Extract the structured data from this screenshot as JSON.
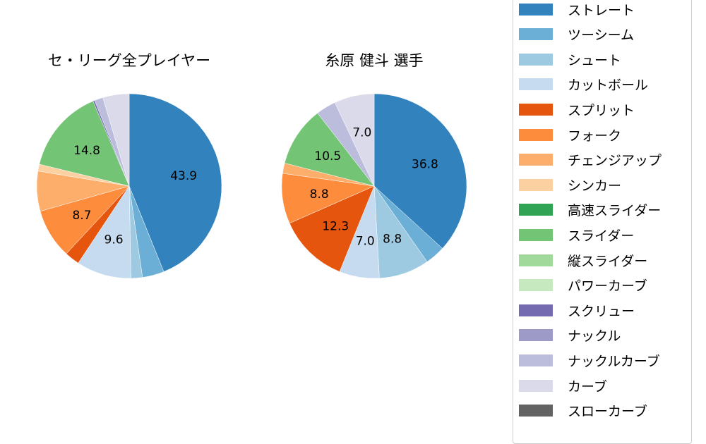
{
  "chart_data": [
    {
      "type": "pie",
      "title": "セ・リーグ全プレイヤー",
      "categories": [
        "ストレート",
        "ツーシーム",
        "シュート",
        "カットボール",
        "スプリット",
        "フォーク",
        "チェンジアップ",
        "シンカー",
        "高速スライダー",
        "スライダー",
        "縦スライダー",
        "パワーカーブ",
        "スクリュー",
        "ナックル",
        "ナックルカーブ",
        "カーブ",
        "スローカーブ"
      ],
      "values": [
        43.9,
        3.8,
        2.0,
        9.6,
        2.6,
        8.7,
        7.0,
        1.2,
        0.0,
        14.8,
        0.0,
        0.0,
        0.3,
        0.0,
        1.5,
        4.6,
        0.0
      ],
      "labels_shown": {
        "ストレート": "43.9",
        "カットボール": "9.6",
        "フォーク": "8.7",
        "スライダー": "14.8"
      },
      "start_angle": 90,
      "direction": "clockwise"
    },
    {
      "type": "pie",
      "title": "糸原 健斗  選手",
      "categories": [
        "ストレート",
        "ツーシーム",
        "シュート",
        "カットボール",
        "スプリット",
        "フォーク",
        "チェンジアップ",
        "シンカー",
        "高速スライダー",
        "スライダー",
        "縦スライダー",
        "パワーカーブ",
        "スクリュー",
        "ナックル",
        "ナックルカーブ",
        "カーブ",
        "スローカーブ"
      ],
      "values": [
        36.8,
        3.5,
        8.8,
        7.0,
        12.3,
        8.8,
        1.8,
        0.0,
        0.0,
        10.5,
        0.0,
        0.0,
        0.0,
        0.0,
        3.5,
        7.0,
        0.0
      ],
      "labels_shown": {
        "ストレート": "36.8",
        "シュート": "8.8",
        "カットボール": "7.0",
        "スプリット": "12.3",
        "フォーク": "8.8",
        "スライダー": "10.5",
        "カーブ": "7.0"
      },
      "start_angle": 90,
      "direction": "clockwise"
    }
  ],
  "titles": {
    "left": "セ・リーグ全プレイヤー",
    "right": "糸原 健斗  選手"
  },
  "legend": [
    {
      "label": "ストレート",
      "color": "#3182bd"
    },
    {
      "label": "ツーシーム",
      "color": "#6baed6"
    },
    {
      "label": "シュート",
      "color": "#9ecae1"
    },
    {
      "label": "カットボール",
      "color": "#c6dbef"
    },
    {
      "label": "スプリット",
      "color": "#e6550d"
    },
    {
      "label": "フォーク",
      "color": "#fd8d3c"
    },
    {
      "label": "チェンジアップ",
      "color": "#fdae6b"
    },
    {
      "label": "シンカー",
      "color": "#fdd0a2"
    },
    {
      "label": "高速スライダー",
      "color": "#31a354"
    },
    {
      "label": "スライダー",
      "color": "#74c476"
    },
    {
      "label": "縦スライダー",
      "color": "#a1d99b"
    },
    {
      "label": "パワーカーブ",
      "color": "#c7e9c0"
    },
    {
      "label": "スクリュー",
      "color": "#756bb1"
    },
    {
      "label": "ナックル",
      "color": "#9e9ac8"
    },
    {
      "label": "ナックルカーブ",
      "color": "#bcbddc"
    },
    {
      "label": "カーブ",
      "color": "#dadaeb"
    },
    {
      "label": "スローカーブ",
      "color": "#636363"
    }
  ]
}
